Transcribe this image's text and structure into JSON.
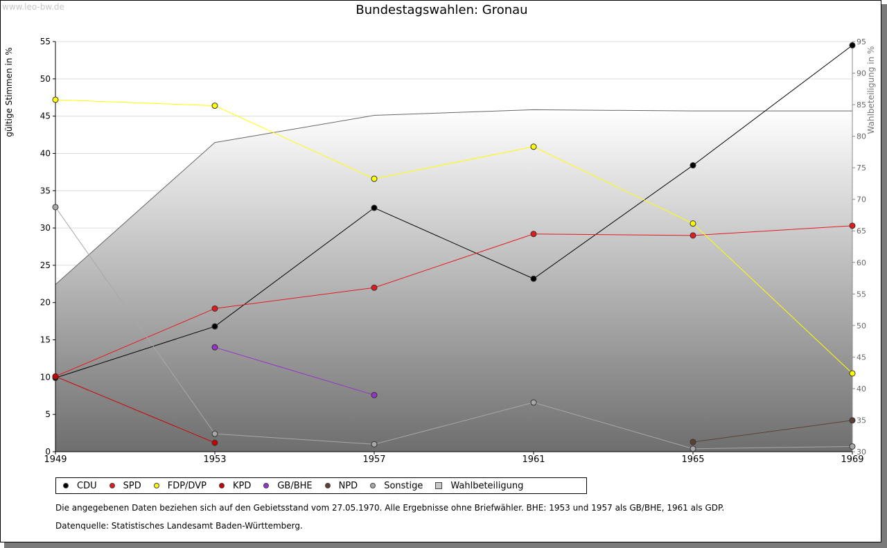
{
  "watermark": "www.leo-bw.de",
  "chart_data": {
    "type": "line",
    "title": "Bundestagswahlen: Gronau",
    "ylabel": "gültige Stimmen in %",
    "y2label": "Wahlbeteiligung in %",
    "x": [
      1949,
      1953,
      1957,
      1961,
      1965,
      1969
    ],
    "x_ticks": [
      "1949",
      "1953",
      "1957",
      "1961",
      "1965",
      "1969"
    ],
    "ylim": [
      0,
      55
    ],
    "y_ticks": [
      "0",
      "5",
      "10",
      "15",
      "20",
      "25",
      "30",
      "35",
      "40",
      "45",
      "50",
      "55"
    ],
    "y2lim": [
      30,
      95
    ],
    "y2_ticks": [
      "30",
      "35",
      "40",
      "45",
      "50",
      "55",
      "60",
      "65",
      "70",
      "75",
      "80",
      "85",
      "90",
      "95"
    ],
    "grid": true,
    "series": [
      {
        "name": "CDU",
        "color": "#000000",
        "values": [
          9.9,
          16.8,
          32.7,
          23.2,
          38.4,
          54.5
        ]
      },
      {
        "name": "SPD",
        "color": "#e41a1c",
        "values": [
          10.1,
          19.2,
          22.0,
          29.2,
          29.0,
          30.3
        ]
      },
      {
        "name": "FDP/DVP",
        "color": "#ffff00",
        "values": [
          47.2,
          46.4,
          36.6,
          40.9,
          30.6,
          10.5
        ]
      },
      {
        "name": "KPD",
        "color": "#cc0000",
        "values": [
          10.1,
          1.2,
          null,
          null,
          null,
          null
        ]
      },
      {
        "name": "GB/BHE",
        "color": "#9932cc",
        "values": [
          null,
          14.0,
          7.6,
          null,
          null,
          null
        ]
      },
      {
        "name": "NPD",
        "color": "#5c4033",
        "values": [
          null,
          null,
          null,
          null,
          1.3,
          4.2
        ]
      },
      {
        "name": "Sonstige",
        "color": "#a8a8a8",
        "values": [
          32.8,
          2.4,
          1.0,
          6.6,
          0.4,
          0.7
        ]
      }
    ],
    "turnout": {
      "name": "Wahlbeteiligung",
      "values": [
        56.5,
        79.0,
        83.3,
        84.2,
        84.0,
        84.0
      ]
    }
  },
  "notes": {
    "line1": "Die angegebenen Daten beziehen sich auf den Gebietsstand vom 27.05.1970. Alle Ergebnisse ohne Briefwähler. BHE: 1953 und 1957 als GB/BHE, 1961 als GDP.",
    "line2": "Datenquelle: Statistisches Landesamt Baden-Württemberg."
  }
}
